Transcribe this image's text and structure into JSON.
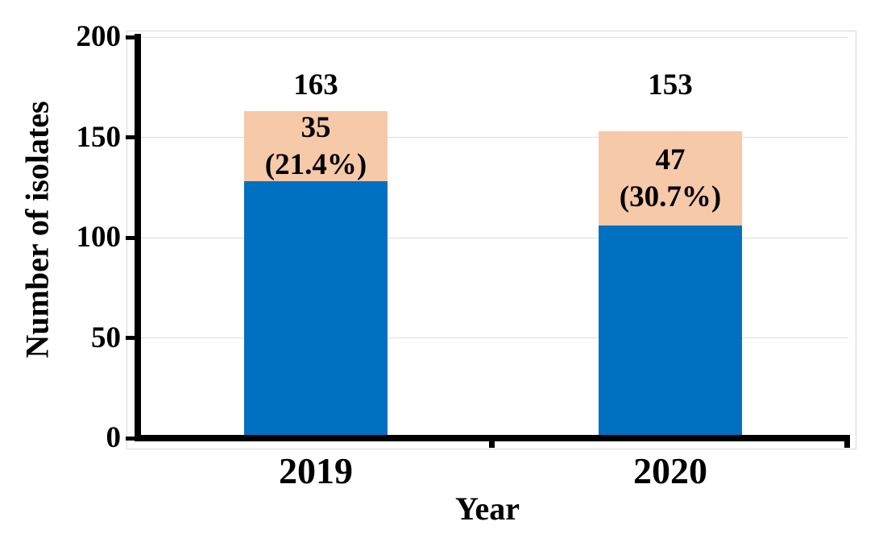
{
  "chart_data": {
    "type": "bar",
    "stacked": true,
    "xlabel": "Year",
    "ylabel": "Number of isolates",
    "ylim": [
      0,
      200
    ],
    "yticks": [
      0,
      50,
      100,
      150,
      200
    ],
    "grid": "horizontal",
    "legend": "none",
    "categories": [
      "2019",
      "2020"
    ],
    "series": [
      {
        "name": "lower-segment-blue",
        "color": "#0070C0",
        "values": [
          128,
          106
        ]
      },
      {
        "name": "upper-segment-peach",
        "color": "#F6C9A8",
        "values": [
          35,
          47
        ]
      }
    ],
    "totals": [
      163,
      153
    ],
    "total_labels": [
      "163",
      "153"
    ],
    "segment_labels": [
      [
        "35",
        "(21.4%)"
      ],
      [
        "47",
        "(30.7%)"
      ]
    ]
  },
  "colors": {
    "bar_blue": "#0070C0",
    "bar_peach": "#F6C9A8",
    "axis": "#000000",
    "gridline": "#DEDEDE",
    "plot_border": "#D9D9D9",
    "text": "#000000",
    "background": "#FFFFFF"
  }
}
